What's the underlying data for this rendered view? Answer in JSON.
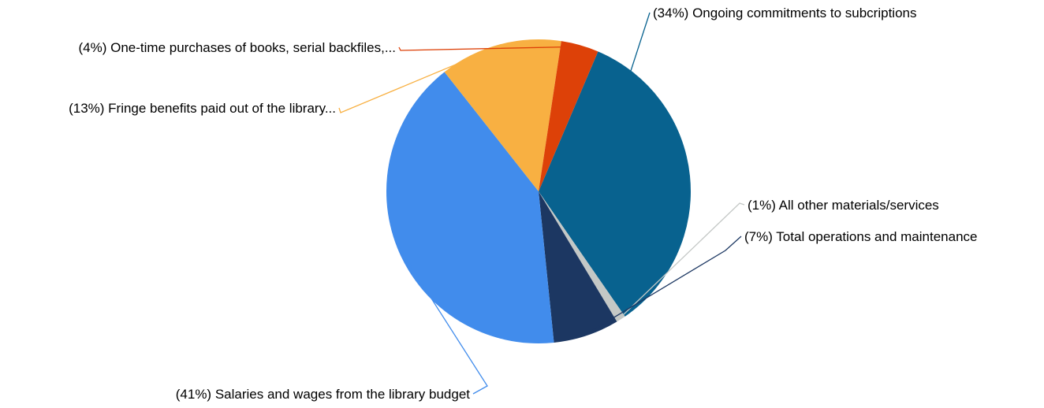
{
  "chart_data": {
    "type": "pie",
    "slices": [
      {
        "label": "(34%) Ongoing commitments to subcriptions",
        "value": 34,
        "color": "#08628F"
      },
      {
        "label": "(1%) All other materials/services",
        "value": 1,
        "color": "#C4C8C6"
      },
      {
        "label": "(7%) Total operations and maintenance",
        "value": 7,
        "color": "#1C3762"
      },
      {
        "label": "(41%) Salaries and wages from the library budget",
        "value": 41,
        "color": "#418CEC"
      },
      {
        "label": "(13%) Fringe benefits paid out of the library...",
        "value": 13,
        "color": "#F8B042"
      },
      {
        "label": "(4%) One-time purchases of books, serial backfiles,...",
        "value": 4,
        "color": "#DD4108"
      }
    ]
  }
}
